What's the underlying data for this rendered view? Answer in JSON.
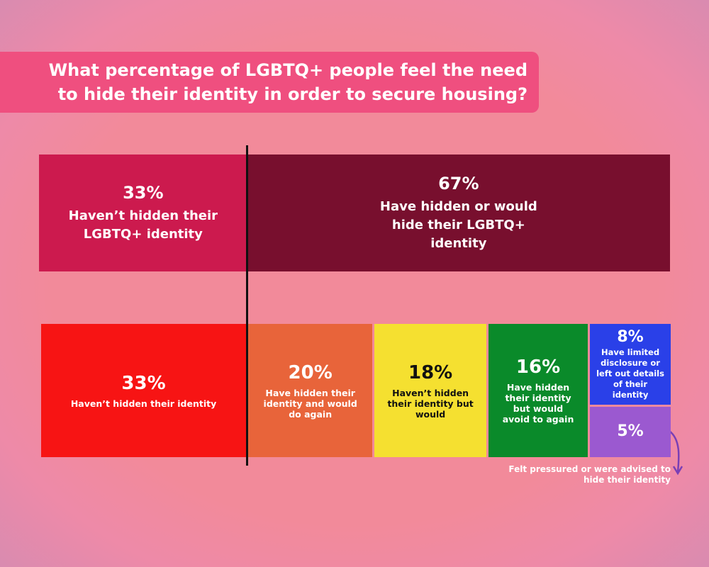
{
  "chart_data": {
    "type": "proportional-blocks",
    "title": "What percentage of LGBTQ+ people feel the need to hide their identity in order to secure housing?",
    "groups": [
      {
        "value": 33,
        "value_label": "33%",
        "label": "Haven’t hidden their LGBTQ+ identity",
        "color": "#cc1a4e"
      },
      {
        "value": 67,
        "value_label": "67%",
        "label": "Have hidden or would hide their LGBTQ+ identity",
        "color": "#780f2e"
      }
    ],
    "columns": [
      [
        {
          "value": 33,
          "value_label": "33%",
          "label": "Haven’t hidden their identity",
          "color": "#f71414",
          "text_color": "#ffffff"
        }
      ],
      [
        {
          "value": 20,
          "value_label": "20%",
          "label": "Have hidden their identity and would do again",
          "color": "#e8643a",
          "text_color": "#ffffff"
        }
      ],
      [
        {
          "value": 18,
          "value_label": "18%",
          "label": "Haven’t hidden their identity but would",
          "color": "#f5e030",
          "text_color": "#111111"
        }
      ],
      [
        {
          "value": 16,
          "value_label": "16%",
          "label": "Have hidden their identity but would avoid to again",
          "color": "#0a8a2a",
          "text_color": "#ffffff"
        }
      ],
      [
        {
          "value": 8,
          "value_label": "8%",
          "label": "Have limited disclosure or left out details of their identity",
          "color": "#2a40e8",
          "text_color": "#ffffff"
        },
        {
          "value": 5,
          "value_label": "5%",
          "caption": "Felt pressured or were advised to hide their identity",
          "color": "#9b59d0",
          "text_color": "#ffffff"
        }
      ]
    ]
  }
}
